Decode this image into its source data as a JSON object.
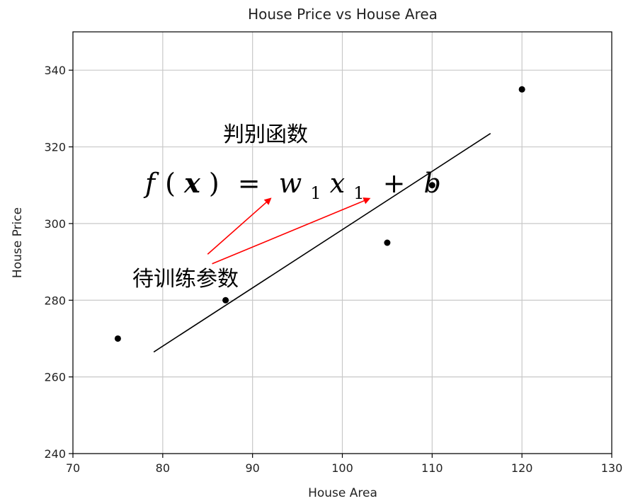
{
  "chart_data": {
    "type": "scatter",
    "title": "House Price vs House Area",
    "xlabel": "House Area",
    "ylabel": "House Price",
    "xlim": [
      70,
      130
    ],
    "ylim": [
      240,
      350
    ],
    "xticks": [
      70,
      80,
      90,
      100,
      110,
      120,
      130
    ],
    "yticks": [
      240,
      260,
      280,
      300,
      320,
      340
    ],
    "grid": true,
    "series": [
      {
        "color": "#000000",
        "points": [
          {
            "x": 75,
            "y": 270
          },
          {
            "x": 87,
            "y": 280
          },
          {
            "x": 105,
            "y": 295
          },
          {
            "x": 110,
            "y": 310
          },
          {
            "x": 120,
            "y": 335
          }
        ]
      }
    ],
    "fit_line": {
      "x": [
        79,
        116.5
      ],
      "y": [
        266.5,
        323.5
      ],
      "color": "#000000"
    },
    "annotations": {
      "discriminant": "判别函数",
      "params": "待训练参数",
      "formula": {
        "f": "f",
        "lp": "(",
        "x": "x",
        "rp": ")",
        "eq": "=",
        "w": "w",
        "sub1": "1",
        "x1": "x",
        "sub2": "1",
        "plus": "+",
        "b": "b"
      },
      "arrow_color": "#ff0000",
      "arrow_targets": [
        {
          "from": {
            "x": 85,
            "y": 292
          },
          "to": {
            "x": 92,
            "y": 306.5
          }
        },
        {
          "from": {
            "x": 85.5,
            "y": 289.5
          },
          "to": {
            "x": 103,
            "y": 306.5
          }
        }
      ]
    }
  }
}
